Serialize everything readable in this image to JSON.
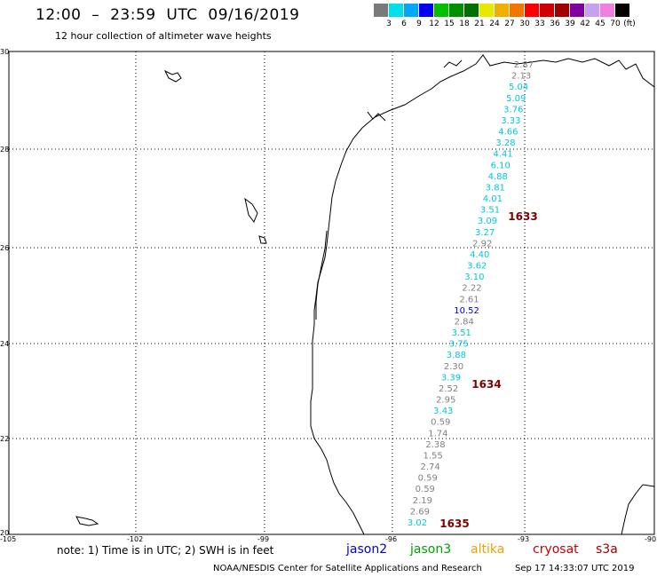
{
  "header": {
    "title": "12:00  –  23:59  UTC  09/16/2019",
    "subtitle": "12 hour collection of altimeter wave heights"
  },
  "legend": {
    "colors": [
      "#7a7a7a",
      "#00e0e8",
      "#00a8f8",
      "#0000ee",
      "#00c000",
      "#009000",
      "#007000",
      "#e8e800",
      "#f0b000",
      "#f07800",
      "#ff0000",
      "#d00000",
      "#a00000",
      "#8000a0",
      "#c8a0f0",
      "#f080e0",
      "#000000"
    ],
    "labels": [
      "3",
      "6",
      "9",
      "12",
      "15",
      "18",
      "21",
      "24",
      "27",
      "30",
      "33",
      "36",
      "39",
      "42",
      "45",
      "70"
    ],
    "unit": "(ft)"
  },
  "axes": {
    "lat_labels": [
      "30",
      "28",
      "26",
      "24",
      "22",
      "20"
    ],
    "lon_labels": [
      "-105",
      "-102",
      "-99",
      "-96",
      "-93",
      "-90"
    ]
  },
  "observations": [
    {
      "v": "2.87",
      "c": "#808080"
    },
    {
      "v": "2.13",
      "c": "#808080"
    },
    {
      "v": "5.04",
      "c": "#00c8d8"
    },
    {
      "v": "5.09",
      "c": "#00c8d8"
    },
    {
      "v": "3.76",
      "c": "#00c8d8"
    },
    {
      "v": "3.33",
      "c": "#00c8d8"
    },
    {
      "v": "4.66",
      "c": "#00c8d8"
    },
    {
      "v": "3.28",
      "c": "#00c8d8"
    },
    {
      "v": "4.41",
      "c": "#00c8d8"
    },
    {
      "v": "6.10",
      "c": "#00c8d8"
    },
    {
      "v": "4.88",
      "c": "#00c8d8"
    },
    {
      "v": "3.81",
      "c": "#00c8d8"
    },
    {
      "v": "4.01",
      "c": "#00c8d8"
    },
    {
      "v": "3.51",
      "c": "#00c8d8"
    },
    {
      "v": "3.09",
      "c": "#00c8d8"
    },
    {
      "v": "3.27",
      "c": "#00c8d8"
    },
    {
      "v": "2.92",
      "c": "#808080"
    },
    {
      "v": "4.40",
      "c": "#00c8d8"
    },
    {
      "v": "3.62",
      "c": "#00c8d8"
    },
    {
      "v": "3.10",
      "c": "#00c8d8"
    },
    {
      "v": "2.22",
      "c": "#808080"
    },
    {
      "v": "2.61",
      "c": "#808080"
    },
    {
      "v": "10.52",
      "c": "#0000c8"
    },
    {
      "v": "2.84",
      "c": "#808080"
    },
    {
      "v": "3.51",
      "c": "#00c8d8"
    },
    {
      "v": "3.75",
      "c": "#00c8d8"
    },
    {
      "v": "3.88",
      "c": "#00c8d8"
    },
    {
      "v": "2.30",
      "c": "#808080"
    },
    {
      "v": "3.39",
      "c": "#00c8d8"
    },
    {
      "v": "2.52",
      "c": "#808080"
    },
    {
      "v": "2.95",
      "c": "#808080"
    },
    {
      "v": "3.43",
      "c": "#00c8d8"
    },
    {
      "v": "0.59",
      "c": "#808080"
    },
    {
      "v": "1.74",
      "c": "#808080"
    },
    {
      "v": "2.38",
      "c": "#808080"
    },
    {
      "v": "1.55",
      "c": "#808080"
    },
    {
      "v": "2.74",
      "c": "#808080"
    },
    {
      "v": "0.59",
      "c": "#808080"
    },
    {
      "v": "0.59",
      "c": "#808080"
    },
    {
      "v": "2.19",
      "c": "#808080"
    },
    {
      "v": "2.69",
      "c": "#808080"
    },
    {
      "v": "3.02",
      "c": "#00c8d8"
    }
  ],
  "time_marks": [
    "1633",
    "1634",
    "1635"
  ],
  "note": {
    "text": "note:  1) Time is in UTC;  2) SWH is in feet",
    "sat1": "jason2",
    "sat2": "jason3",
    "sat3": "altika",
    "sat4": "cryosat",
    "sat5": "s3a"
  },
  "footer": {
    "org": "NOAA/NESDIS Center for Satellite Applications and Research",
    "time": "Sep 17 14:33:07 UTC 2019"
  },
  "colors": {
    "grid": "#000000",
    "coast": "#000000",
    "jason2": "#0000dd",
    "jason3": "#00a000",
    "altika": "#f0a000",
    "cryosat": "#c80000",
    "s3a": "#a00000",
    "timemark": "#800000"
  }
}
